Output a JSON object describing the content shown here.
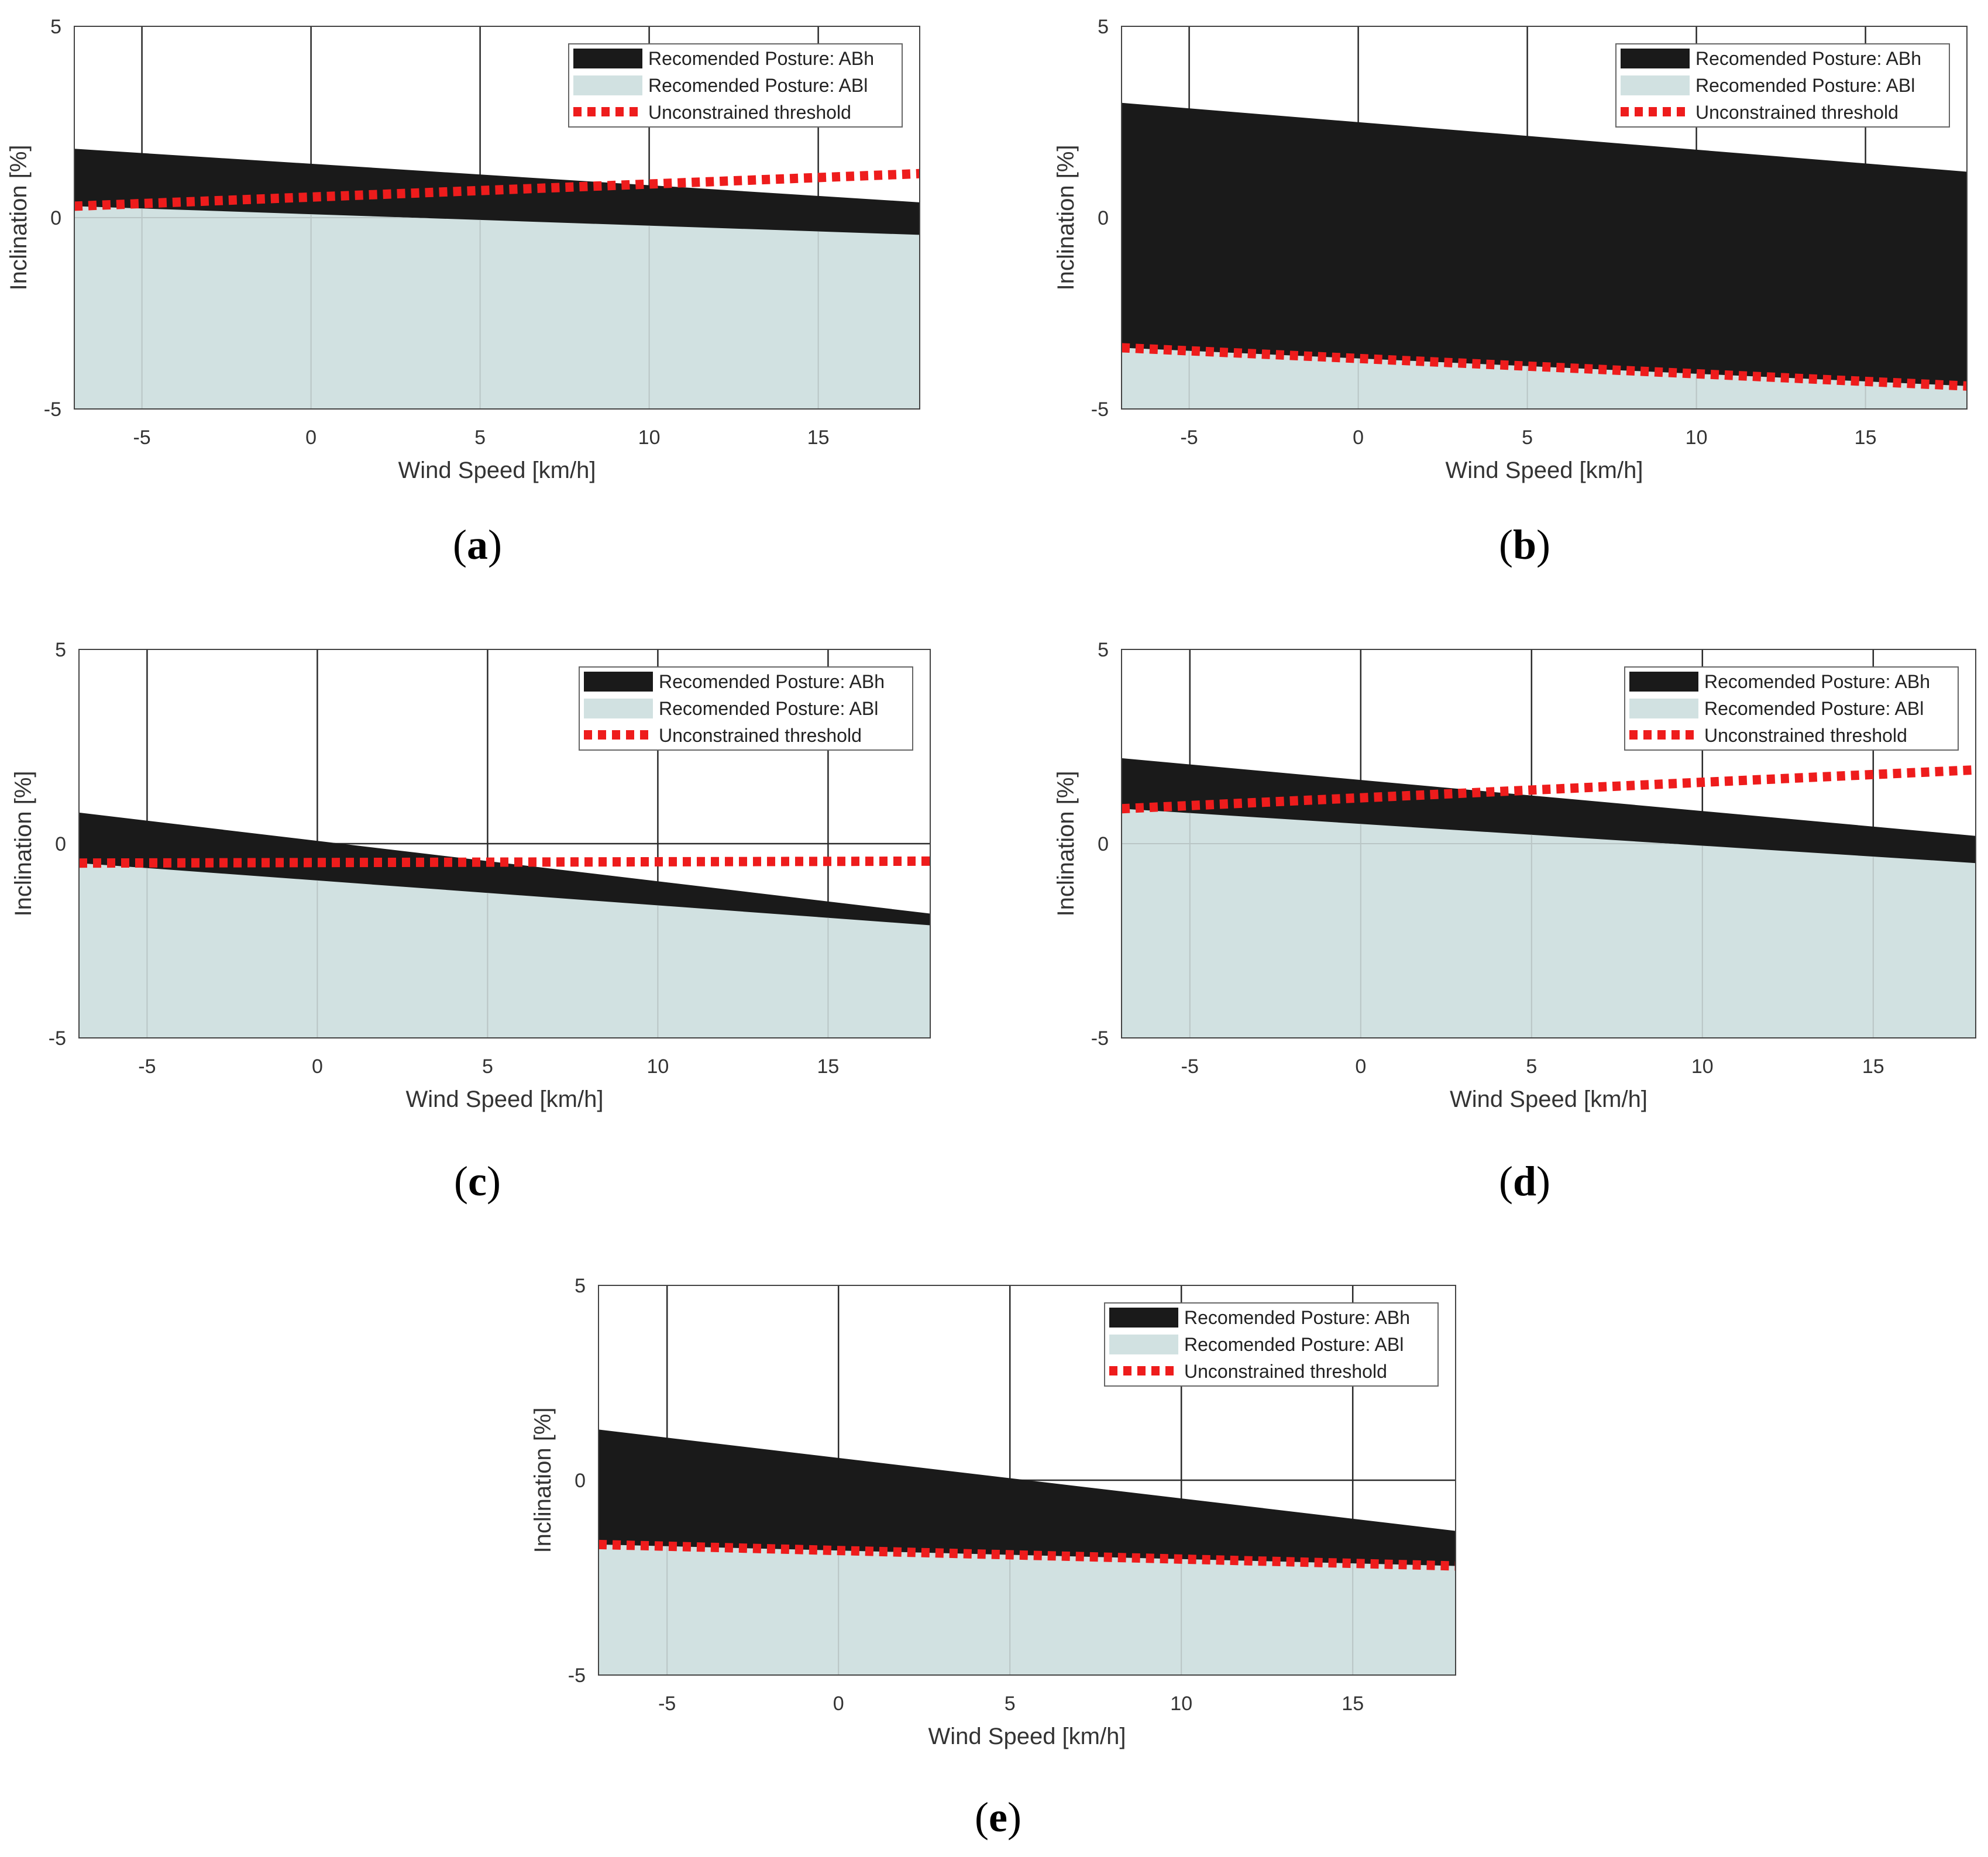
{
  "colors": {
    "abh_fill": "#1a1a1a",
    "abl_fill": "#d1e1e1",
    "threshold": "#ee1c1c",
    "grid_dark": "#2a2a2a",
    "grid_light": "#b9c5c5",
    "axis_text": "#333333"
  },
  "legend": {
    "abh": "Recomended Posture: ABh",
    "abl": "Recomended Posture: ABl",
    "threshold": "Unconstrained threshold"
  },
  "axes": {
    "xlabel": "Wind Speed [km/h]",
    "ylabel": "Inclination [%]",
    "xlim": [
      -7,
      18
    ],
    "ylim": [
      -5,
      5
    ],
    "xticks": [
      -5,
      0,
      5,
      10,
      15
    ],
    "yticks": [
      -5,
      0,
      5
    ]
  },
  "chart_data": [
    {
      "type": "area",
      "label": "a",
      "title": "",
      "x": [
        -7,
        18
      ],
      "series": [
        {
          "name": "Recomended Posture: ABh (upper)",
          "values": [
            1.8,
            0.4
          ]
        },
        {
          "name": "Recomended Posture: ABl (upper)",
          "values": [
            0.3,
            -0.45
          ]
        },
        {
          "name": "Unconstrained threshold",
          "values": [
            0.3,
            1.15
          ]
        }
      ]
    },
    {
      "type": "area",
      "label": "b",
      "title": "",
      "x": [
        -7,
        18
      ],
      "series": [
        {
          "name": "Recomended Posture: ABh (upper)",
          "values": [
            3.0,
            1.2
          ]
        },
        {
          "name": "Recomended Posture: ABl (upper)",
          "values": [
            -3.4,
            -4.4
          ]
        },
        {
          "name": "Unconstrained threshold",
          "values": [
            -3.4,
            -4.4
          ]
        }
      ]
    },
    {
      "type": "area",
      "label": "c",
      "title": "",
      "x": [
        -7,
        18
      ],
      "series": [
        {
          "name": "Recomended Posture: ABh (upper)",
          "values": [
            0.8,
            -1.8
          ]
        },
        {
          "name": "Recomended Posture: ABl (upper)",
          "values": [
            -0.5,
            -2.1
          ]
        },
        {
          "name": "Unconstrained threshold",
          "values": [
            -0.5,
            -0.45
          ]
        }
      ]
    },
    {
      "type": "area",
      "label": "d",
      "title": "",
      "x": [
        -7,
        18
      ],
      "series": [
        {
          "name": "Recomended Posture: ABh (upper)",
          "values": [
            2.2,
            0.2
          ]
        },
        {
          "name": "Recomended Posture: ABl (upper)",
          "values": [
            0.9,
            -0.5
          ]
        },
        {
          "name": "Unconstrained threshold",
          "values": [
            0.9,
            1.9
          ]
        }
      ]
    },
    {
      "type": "area",
      "label": "e",
      "title": "",
      "x": [
        -7,
        18
      ],
      "series": [
        {
          "name": "Recomended Posture: ABh (upper)",
          "values": [
            1.3,
            -1.3
          ]
        },
        {
          "name": "Recomended Posture: ABl (upper)",
          "values": [
            -1.65,
            -2.2
          ]
        },
        {
          "name": "Unconstrained threshold",
          "values": [
            -1.65,
            -2.2
          ]
        }
      ]
    }
  ],
  "panel_labels": [
    "a",
    "b",
    "c",
    "d",
    "e"
  ]
}
